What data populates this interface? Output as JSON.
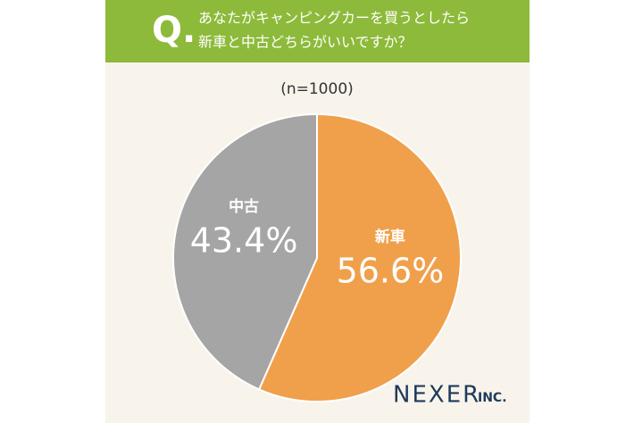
{
  "chart_data": {
    "type": "pie",
    "title_marker": "Q.",
    "title_lines": [
      "あなたがキャンピングカーを買うとしたら",
      "新車と中古どちらがいいですか？"
    ],
    "subtitle": "(n=1000)",
    "categories": [
      "新車",
      "中古"
    ],
    "values": [
      56.6,
      43.4
    ],
    "value_labels": [
      "56.6%",
      "43.4%"
    ],
    "colors": [
      "#f0a04b",
      "#a5a5a5"
    ],
    "brand": "NEXER",
    "brand_suffix": "INC."
  }
}
